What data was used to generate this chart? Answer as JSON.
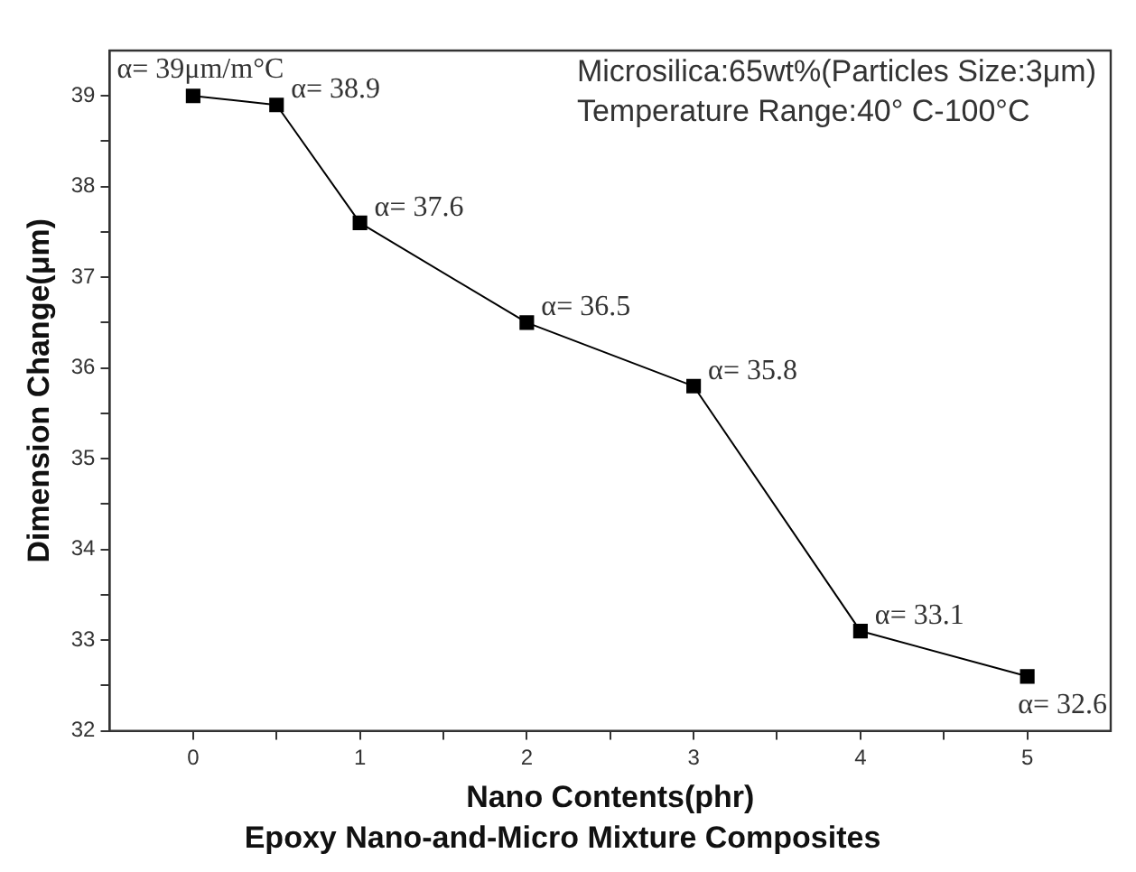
{
  "chart_data": {
    "type": "line",
    "title": "Epoxy Nano-and-Micro Mixture Composites",
    "xlabel": "Nano Contents(phr)",
    "ylabel": "Dimension Change(μm)",
    "x": [
      0,
      0.5,
      1,
      2,
      3,
      4,
      5
    ],
    "series": [
      {
        "color": "#000000",
        "values": [
          39,
          38.9,
          37.6,
          36.5,
          35.8,
          33.1,
          32.6
        ]
      }
    ],
    "xlim": [
      -0.5,
      5.5
    ],
    "xticks": [
      0,
      {
        "value": 0.5,
        "label": null
      },
      1,
      {
        "value": 1.5,
        "label": null
      },
      2,
      {
        "value": 2.5,
        "label": null
      },
      3,
      {
        "value": 3.5,
        "label": null
      },
      4,
      {
        "value": 4.5,
        "label": null
      },
      5
    ],
    "ylim": [
      32,
      39.5
    ],
    "yticks": [
      32,
      {
        "value": 32.5,
        "label": null
      },
      33,
      {
        "value": 33.5,
        "label": null
      },
      34,
      {
        "value": 34.5,
        "label": null
      },
      35,
      {
        "value": 35.5,
        "label": null
      },
      36,
      {
        "value": 36.5,
        "label": null
      },
      37,
      {
        "value": 37.5,
        "label": null
      },
      38,
      {
        "value": 38.5,
        "label": null
      },
      39
    ],
    "marker": "square",
    "line_style": "solid",
    "grid": false,
    "legend": false,
    "annotations": [
      {
        "text": "α= 39μm/m°C",
        "x": 0,
        "y": 39
      },
      {
        "text": "α= 38.9",
        "x": 0.5,
        "y": 38.9
      },
      {
        "text": "α= 37.6",
        "x": 1,
        "y": 37.6
      },
      {
        "text": "α= 36.5",
        "x": 2,
        "y": 36.5
      },
      {
        "text": "α= 35.8",
        "x": 3,
        "y": 35.8
      },
      {
        "text": "α= 33.1",
        "x": 4,
        "y": 33.1
      },
      {
        "text": "α= 32.6",
        "x": 5,
        "y": 32.6
      },
      "Microsilica:65wt%(Particles Size:3μm)",
      "Temperature Range:40° C-100°C"
    ]
  }
}
